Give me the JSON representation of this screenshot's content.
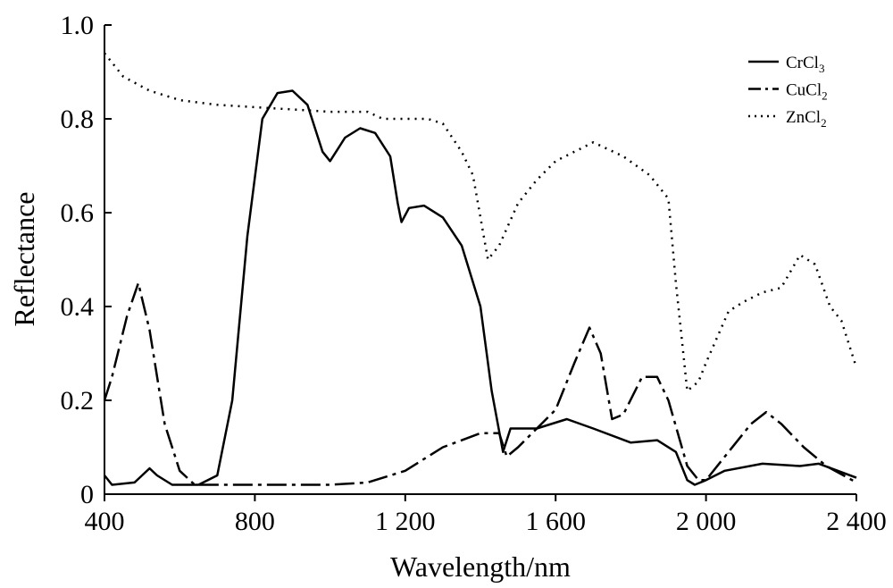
{
  "chart_data": {
    "type": "line",
    "title": "",
    "xlabel": "Wavelength/nm",
    "ylabel": "Reflectance",
    "xlim": [
      400,
      2400
    ],
    "ylim": [
      0,
      1.0
    ],
    "grid": false,
    "legend_position": "top-right",
    "x_ticks": [
      400,
      800,
      1200,
      1600,
      2000,
      2400
    ],
    "x_tick_labels": [
      "400",
      "800",
      "1 200",
      "1 600",
      "2 000",
      "2 400"
    ],
    "y_ticks": [
      0,
      0.2,
      0.4,
      0.6,
      0.8,
      1.0
    ],
    "y_tick_labels": [
      "0",
      "0.2",
      "0.4",
      "0.6",
      "0.8",
      "1.0"
    ],
    "series": [
      {
        "name": "CrCl3",
        "label_main": "CrCl",
        "label_sub": "3",
        "style": "solid",
        "x": [
          400,
          420,
          480,
          520,
          540,
          580,
          650,
          700,
          740,
          780,
          820,
          860,
          900,
          940,
          980,
          1000,
          1040,
          1080,
          1120,
          1160,
          1180,
          1190,
          1210,
          1250,
          1300,
          1350,
          1400,
          1430,
          1460,
          1480,
          1550,
          1630,
          1700,
          1800,
          1870,
          1920,
          1950,
          1970,
          2000,
          2050,
          2150,
          2250,
          2300,
          2400
        ],
        "values": [
          0.04,
          0.02,
          0.025,
          0.055,
          0.04,
          0.02,
          0.02,
          0.04,
          0.2,
          0.55,
          0.8,
          0.855,
          0.86,
          0.83,
          0.73,
          0.71,
          0.76,
          0.78,
          0.77,
          0.72,
          0.62,
          0.58,
          0.61,
          0.615,
          0.59,
          0.53,
          0.4,
          0.22,
          0.09,
          0.14,
          0.14,
          0.16,
          0.14,
          0.11,
          0.115,
          0.09,
          0.03,
          0.02,
          0.03,
          0.05,
          0.065,
          0.06,
          0.065,
          0.035
        ]
      },
      {
        "name": "CuCl2",
        "label_main": "CuCl",
        "label_sub": "2",
        "style": "dashdot",
        "x": [
          400,
          420,
          460,
          490,
          520,
          560,
          600,
          640,
          700,
          800,
          1000,
          1100,
          1200,
          1300,
          1400,
          1450,
          1470,
          1500,
          1600,
          1650,
          1690,
          1720,
          1750,
          1780,
          1830,
          1870,
          1900,
          1950,
          1980,
          2000,
          2050,
          2120,
          2160,
          2200,
          2260,
          2320,
          2400
        ],
        "values": [
          0.2,
          0.25,
          0.38,
          0.45,
          0.35,
          0.15,
          0.05,
          0.02,
          0.02,
          0.02,
          0.02,
          0.025,
          0.05,
          0.1,
          0.13,
          0.13,
          0.08,
          0.1,
          0.18,
          0.28,
          0.355,
          0.3,
          0.16,
          0.17,
          0.25,
          0.25,
          0.2,
          0.06,
          0.03,
          0.03,
          0.08,
          0.15,
          0.175,
          0.15,
          0.1,
          0.06,
          0.025
        ]
      },
      {
        "name": "ZnCl2",
        "label_main": "ZnCl",
        "label_sub": "2",
        "style": "dotted",
        "x": [
          400,
          450,
          520,
          600,
          700,
          800,
          900,
          1000,
          1100,
          1140,
          1200,
          1260,
          1300,
          1350,
          1380,
          1420,
          1450,
          1500,
          1550,
          1600,
          1700,
          1780,
          1850,
          1900,
          1920,
          1950,
          1980,
          2000,
          2060,
          2100,
          2150,
          2200,
          2250,
          2290,
          2330,
          2360,
          2400
        ],
        "values": [
          0.94,
          0.89,
          0.86,
          0.84,
          0.83,
          0.825,
          0.82,
          0.815,
          0.815,
          0.8,
          0.8,
          0.8,
          0.79,
          0.73,
          0.68,
          0.5,
          0.53,
          0.62,
          0.67,
          0.71,
          0.75,
          0.72,
          0.68,
          0.63,
          0.45,
          0.22,
          0.24,
          0.28,
          0.39,
          0.41,
          0.43,
          0.44,
          0.51,
          0.49,
          0.4,
          0.37,
          0.27
        ]
      }
    ]
  }
}
